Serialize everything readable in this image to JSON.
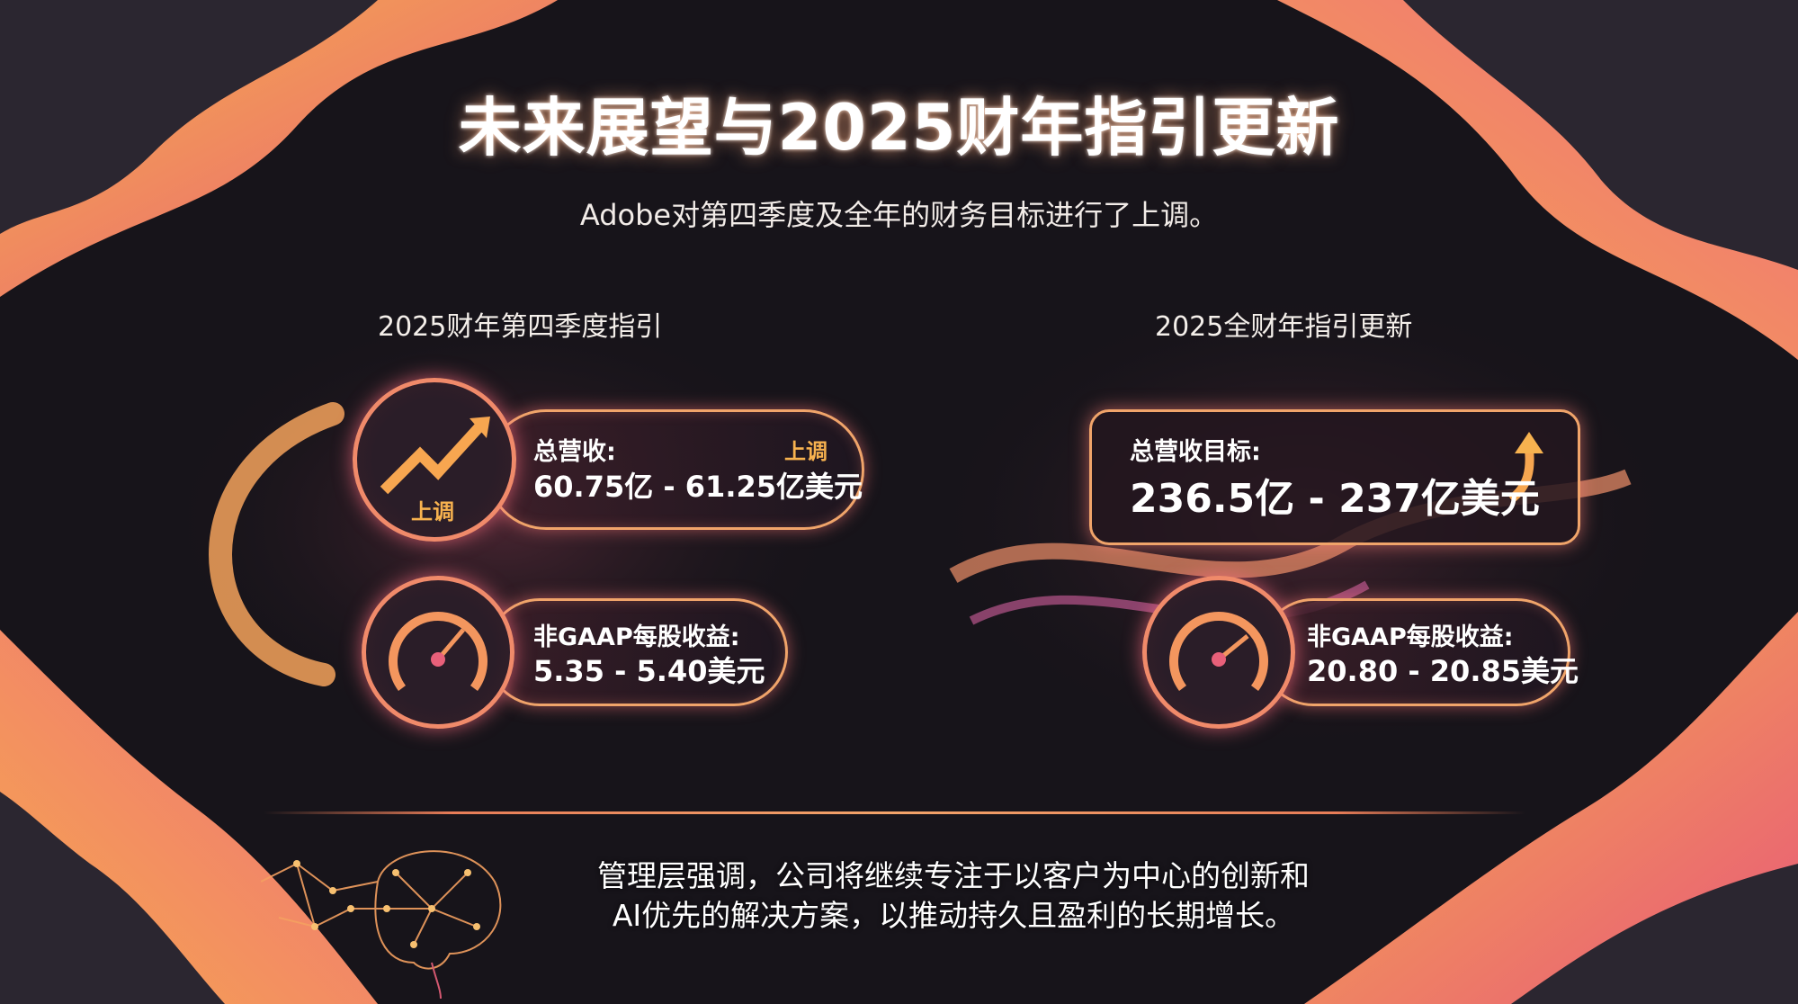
{
  "title": "未来展望与2025财年指引更新",
  "subtitle": "Adobe对第四季度及全年的财务目标进行了上调。",
  "colors": {
    "background": "#17141a",
    "accent_orange": "#f7b24f",
    "accent_pink": "#e8607a",
    "border": "#f0a46a"
  },
  "q4": {
    "heading": "2025财年第四季度指引",
    "revenue": {
      "label": "总营收:",
      "value": "60.75亿 - 61.25亿美元",
      "badge_icon": "上调",
      "badge_tag": "上调",
      "icon": "trend-up-arrow-icon"
    },
    "eps": {
      "label": "非GAAP每股收益:",
      "value": "5.35 - 5.40美元",
      "icon": "speedometer-gauge-icon"
    }
  },
  "fy": {
    "heading": "2025全财年指引更新",
    "revenue": {
      "label": "总营收目标:",
      "value": "236.5亿 - 237亿美元",
      "icon": "up-arrow-icon"
    },
    "eps": {
      "label": "非GAAP每股收益:",
      "value": "20.80 - 20.85美元",
      "icon": "speedometer-gauge-icon"
    }
  },
  "footer": {
    "line1": "管理层强调，公司将继续专注于以客户为中心的创新和",
    "line2": "AI优先的解决方案，以推动持久且盈利的长期增长。",
    "icon": "brain-network-icon"
  }
}
